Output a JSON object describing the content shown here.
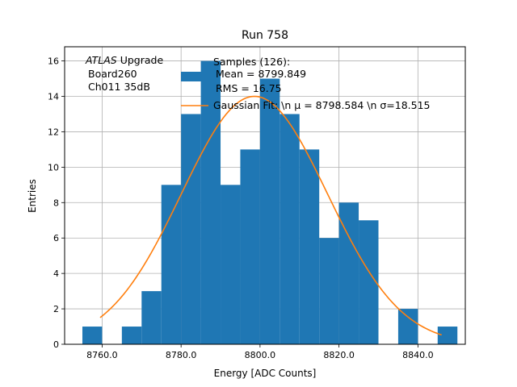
{
  "chart_data": {
    "type": "histogram",
    "title": "Run 758",
    "xlabel": "Energy [ADC Counts]",
    "ylabel": "Entries",
    "xlim": [
      8750.5,
      8852.0
    ],
    "ylim": [
      0,
      16.8
    ],
    "grid": true,
    "bin_width": 5,
    "bin_edges": [
      8755,
      8760,
      8765,
      8770,
      8775,
      8780,
      8785,
      8790,
      8795,
      8800,
      8805,
      8810,
      8815,
      8820,
      8825,
      8830,
      8835,
      8840,
      8845,
      8850
    ],
    "counts": [
      1,
      0,
      1,
      3,
      9,
      13,
      16,
      9,
      11,
      15,
      13,
      11,
      6,
      8,
      7,
      0,
      2,
      0,
      1
    ],
    "bar_color": "#1f77b4",
    "fit_color": "#ff7f0e",
    "fit": {
      "mu": 8798.584,
      "sigma": 18.515,
      "amplitude": 14.0,
      "x_range": [
        8759.5,
        8846.0
      ]
    },
    "x_ticks": [
      8760,
      8780,
      8800,
      8820,
      8840
    ],
    "x_tick_labels": [
      "8760.0",
      "8780.0",
      "8800.0",
      "8820.0",
      "8840.0"
    ],
    "y_ticks": [
      0,
      2,
      4,
      6,
      8,
      10,
      12,
      14,
      16
    ],
    "y_tick_labels": [
      "0",
      "2",
      "4",
      "6",
      "8",
      "10",
      "12",
      "14",
      "16"
    ],
    "legend": {
      "location": "top-right",
      "samples_line1": "Samples (126):",
      "samples_line2": "Mean = 8799.849",
      "samples_line3": "RMS = 16.75",
      "fit_label": "Gaussian Fit: \\n μ = 8798.584 \\n σ=18.515"
    },
    "annotation": {
      "location": "top-left",
      "experiment": "ATLAS",
      "upgrade": "Upgrade",
      "board": "Board260",
      "channel": "Ch011 35dB"
    }
  }
}
